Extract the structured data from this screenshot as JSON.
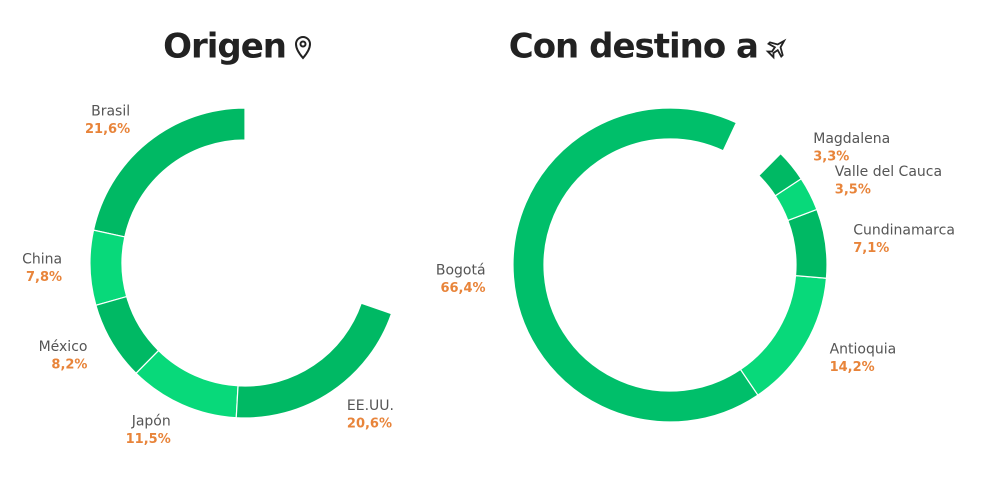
{
  "chart_data": [
    {
      "type": "donut",
      "title": "Origen",
      "categories": [
        "Brasil",
        "China",
        "México",
        "Japón",
        "EE.UU."
      ],
      "values": [
        21.6,
        7.8,
        8.2,
        11.5,
        20.6
      ],
      "value_labels": [
        "21,6%",
        "7,8%",
        "8,2%",
        "11,5%",
        "20,6%"
      ],
      "colors": [
        "#00b964",
        "#08d97a",
        "#00b964",
        "#08d97a",
        "#00b964"
      ]
    },
    {
      "type": "donut",
      "title": "Con destino a",
      "categories": [
        "Bogotá",
        "Antioquia",
        "Cundinamarca",
        "Valle del Cauca",
        "Magdalena"
      ],
      "values": [
        66.4,
        14.2,
        7.1,
        3.5,
        3.3
      ],
      "value_labels": [
        "66,4%",
        "14,2%",
        "7,1%",
        "3,5%",
        "3,3%"
      ],
      "colors": [
        "#00bf6a",
        "#08d97a",
        "#00b964",
        "#08d97a",
        "#00b964"
      ]
    }
  ]
}
